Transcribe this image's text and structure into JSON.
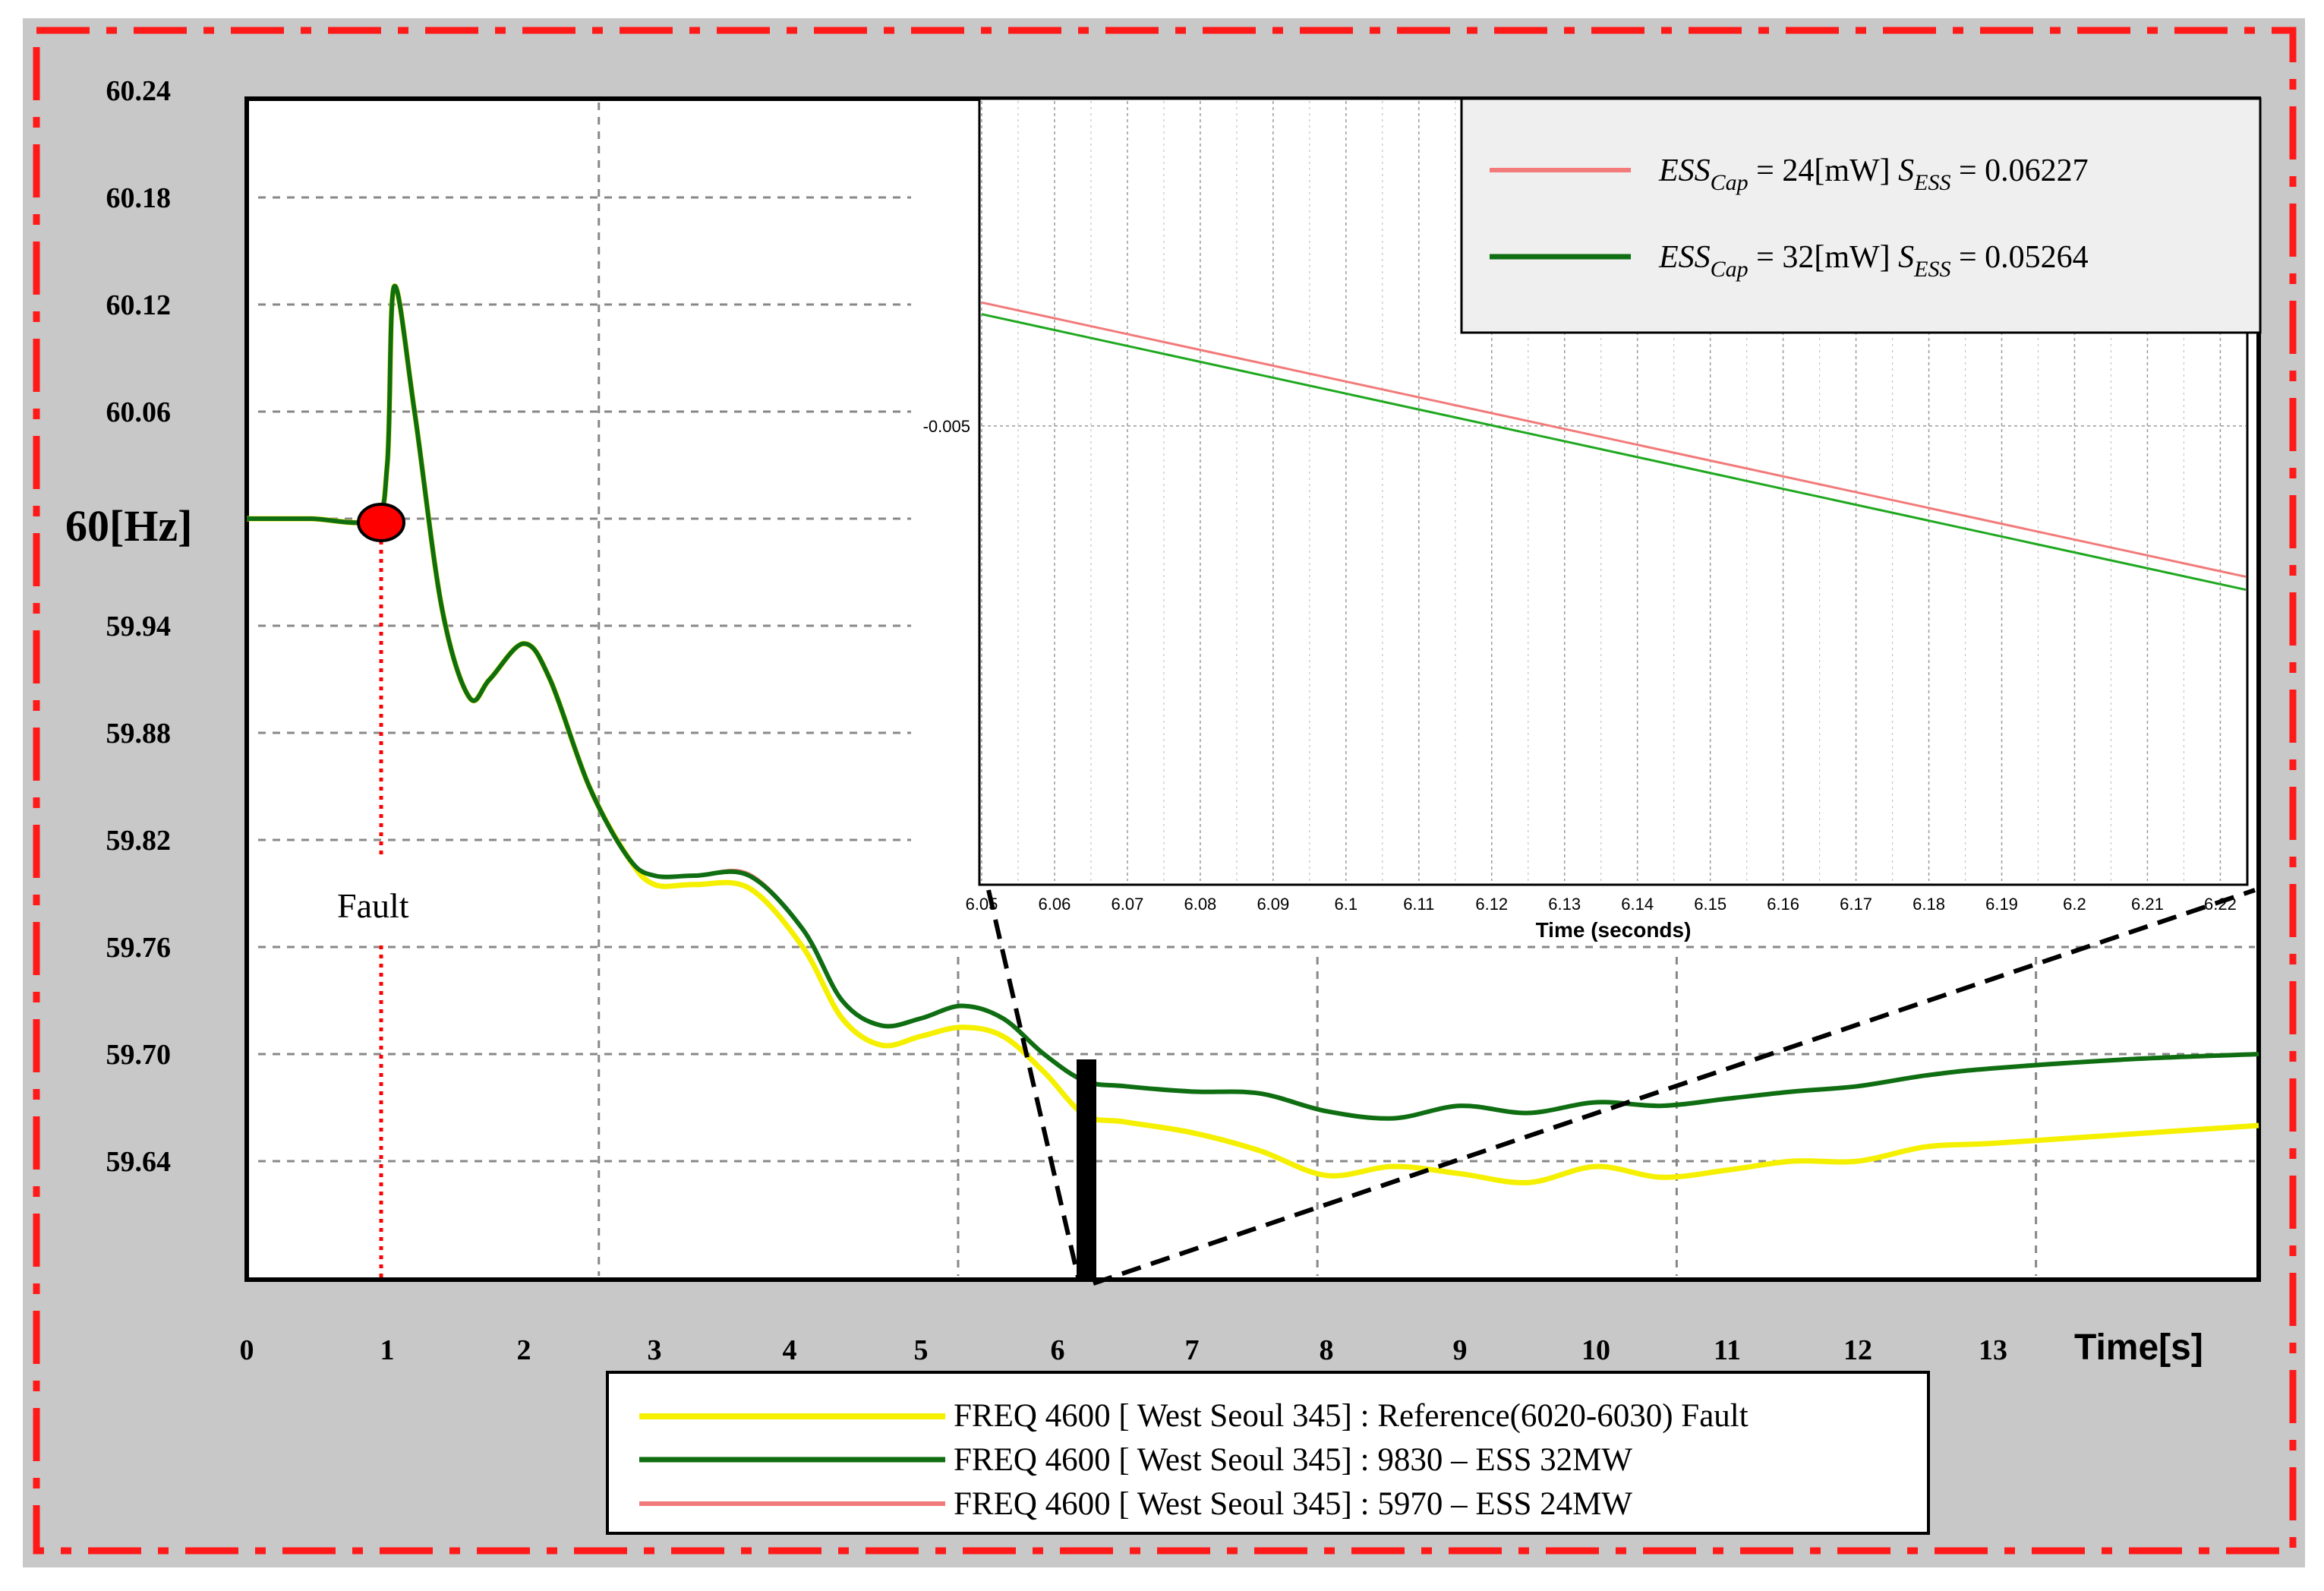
{
  "chart_data": [
    {
      "type": "line",
      "title": "",
      "ylabel": "60[Hz]",
      "xlabel": "Time[s]",
      "x_ticks": [
        "0",
        "1",
        "2",
        "3",
        "4",
        "5",
        "6",
        "7",
        "8",
        "9",
        "10",
        "11",
        "12",
        "13"
      ],
      "y_ticks": [
        "60.24",
        "60.18",
        "60.12",
        "60.06",
        "59.94",
        "59.88",
        "59.82",
        "59.76",
        "59.70",
        "59.64"
      ],
      "xlim": [
        0,
        14
      ],
      "ylim": [
        59.58,
        60.24
      ],
      "grid": true,
      "legend_position": "bottom-center",
      "annotations": {
        "fault_label": "Fault",
        "fault_time": 1.0
      },
      "series": [
        {
          "name": "FREQ 4600 [ West Seoul 345] : Reference(6020-6030) Fault",
          "color": "#f5f000",
          "x": [
            0,
            0.45,
            0.9,
            1.0,
            1.05,
            1.2,
            1.4,
            1.6,
            1.75,
            2.0,
            2.2,
            2.5,
            2.8,
            3.0,
            3.3,
            3.7,
            4.1,
            4.4,
            4.7,
            5.0,
            5.3,
            5.6,
            5.9,
            6.2,
            6.5,
            7.0,
            7.5,
            8.0,
            8.5,
            9.0,
            9.5,
            10.0,
            10.5,
            11.0,
            11.5,
            12.0,
            12.5,
            13.0,
            13.5,
            14.0
          ],
          "values": [
            60.0,
            60.0,
            60.0,
            60.03,
            60.13,
            60.06,
            59.95,
            59.9,
            59.91,
            59.93,
            59.91,
            59.85,
            59.81,
            59.795,
            59.795,
            59.793,
            59.76,
            59.72,
            59.705,
            59.71,
            59.715,
            59.71,
            59.69,
            59.666,
            59.662,
            59.656,
            59.646,
            59.632,
            59.637,
            59.633,
            59.628,
            59.637,
            59.631,
            59.635,
            59.64,
            59.64,
            59.648,
            59.65,
            59.655,
            59.66
          ]
        },
        {
          "name": "FREQ 4600 [ West Seoul 345] : 9830 – ESS 32MW",
          "color": "#0f6e12",
          "x": [
            0,
            0.45,
            0.9,
            1.0,
            1.05,
            1.2,
            1.4,
            1.6,
            1.75,
            2.0,
            2.2,
            2.5,
            2.8,
            3.0,
            3.3,
            3.7,
            4.1,
            4.4,
            4.7,
            5.0,
            5.3,
            5.6,
            5.9,
            6.2,
            6.5,
            7.0,
            7.5,
            8.0,
            8.5,
            9.0,
            9.5,
            10.0,
            10.5,
            11.0,
            11.5,
            12.0,
            12.5,
            13.0,
            13.5,
            14.0
          ],
          "values": [
            60.0,
            60.0,
            60.0,
            60.03,
            60.13,
            60.06,
            59.95,
            59.9,
            59.91,
            59.93,
            59.91,
            59.85,
            59.81,
            59.8,
            59.8,
            59.8,
            59.77,
            59.73,
            59.716,
            59.72,
            59.727,
            59.72,
            59.7,
            59.685,
            59.682,
            59.679,
            59.678,
            59.668,
            59.664,
            59.671,
            59.667,
            59.673,
            59.671,
            59.675,
            59.679,
            59.682,
            59.688,
            59.692,
            59.697,
            59.7
          ]
        },
        {
          "name": "FREQ 4600 [ West Seoul 345] : 5970 – ESS 24MW",
          "color": "#f27a7a",
          "x": [
            0,
            0.45,
            0.9,
            1.0,
            1.05,
            1.2,
            1.4,
            1.6,
            1.75,
            2.0,
            2.2,
            2.5,
            2.8,
            3.0,
            3.3,
            3.7,
            4.1,
            4.4,
            4.7,
            5.0,
            5.3,
            5.6,
            5.9,
            6.2,
            6.5,
            7.0,
            7.5,
            8.0,
            8.5,
            9.0,
            9.5,
            10.0,
            10.5,
            11.0,
            11.5,
            12.0,
            12.5,
            13.0,
            13.5,
            14.0
          ],
          "values": [
            60.0,
            60.0,
            60.0,
            60.03,
            60.13,
            60.06,
            59.95,
            59.9,
            59.91,
            59.93,
            59.91,
            59.85,
            59.81,
            59.8,
            59.8,
            59.801,
            59.77,
            59.73,
            59.716,
            59.72,
            59.727,
            59.72,
            59.7,
            59.685,
            59.682,
            59.679,
            59.678,
            59.668,
            59.664,
            59.671,
            59.667,
            59.673,
            59.671,
            59.675,
            59.679,
            59.682,
            59.688,
            59.692,
            59.697,
            59.7
          ]
        }
      ],
      "legend_entries": [
        "FREQ 4600 [ West Seoul 345] : Reference(6020-6030) Fault",
        "FREQ 4600 [ West Seoul 345] : 9830 – ESS 32MW",
        "FREQ 4600 [ West Seoul 345] : 5970 – ESS 24MW"
      ]
    },
    {
      "type": "line",
      "title": "",
      "xlabel": "Time (seconds)",
      "ylabel": "",
      "x_ticks": [
        "6.05",
        "6.06",
        "6.07",
        "6.08",
        "6.09",
        "6.1",
        "6.11",
        "6.12",
        "6.13",
        "6.14",
        "6.15",
        "6.16",
        "6.17",
        "6.18",
        "6.19",
        "6.2",
        "6.21",
        "6.22"
      ],
      "y_ticks": [
        "-0.005"
      ],
      "xlim": [
        6.05,
        6.2235
      ],
      "ylim": [
        -0.0085,
        -0.0025
      ],
      "grid": true,
      "legend_position": "top-right",
      "series": [
        {
          "name": "ESS_Cap = 24[mW] S_ESS = 0.06227",
          "color": "#f27a7a",
          "x": [
            6.05,
            6.2235
          ],
          "values": [
            -0.00405,
            -0.00616
          ]
        },
        {
          "name": "ESS_Cap = 32[mW] S_ESS = 0.05264",
          "color": "#1fa81f",
          "x": [
            6.05,
            6.2235
          ],
          "values": [
            -0.00414,
            -0.00626
          ]
        }
      ],
      "legend_entries": [
        {
          "var": "ESS",
          "var_sub": "Cap",
          "text": " = 24[mW] ",
          "s": "S",
          "s_sub": "ESS",
          "value": " = 0.06227",
          "color": "#f27a7a"
        },
        {
          "var": "ESS",
          "var_sub": "Cap",
          "text": " = 32[mW] ",
          "s": "S",
          "s_sub": "ESS",
          "value": " = 0.05264",
          "color": "#0f6e12"
        }
      ]
    }
  ],
  "colors": {
    "frame_border": "#ff1a1a",
    "frame_background": "#c8c8c8",
    "fault_marker": "#ff0000",
    "zoom_lines": "#000000"
  }
}
